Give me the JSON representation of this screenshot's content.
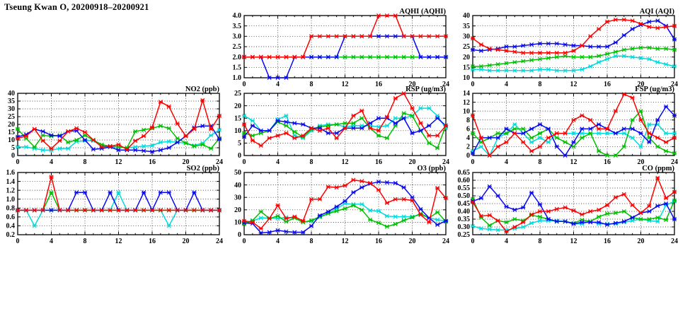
{
  "page_title": "Tseung Kwan O, 20200918–20200921",
  "x_axis": {
    "min": 0,
    "max": 24,
    "major_tick_step": 4,
    "minor_tick_step": 1,
    "tick_labels": [
      "0",
      "4",
      "8",
      "12",
      "16",
      "20",
      "24"
    ]
  },
  "series_colors": {
    "red": "#ff0000",
    "green": "#00c000",
    "blue": "#0808f0",
    "cyan": "#00dcdc"
  },
  "x_values": [
    0,
    1,
    2,
    3,
    4,
    5,
    6,
    7,
    8,
    9,
    10,
    11,
    12,
    13,
    14,
    15,
    16,
    17,
    18,
    19,
    20,
    21,
    22,
    23,
    24
  ],
  "chart_data": [
    {
      "id": "aqhi",
      "type": "line",
      "title": "AQHI (AQHI)",
      "ylim": [
        1.0,
        4.0
      ],
      "ytick_step": 0.5,
      "y_decimals": 1,
      "grid": true,
      "series": [
        {
          "name": "red",
          "values": [
            2,
            2,
            2,
            2,
            2,
            2,
            2,
            2,
            3,
            3,
            3,
            3,
            3,
            3,
            3,
            3,
            4,
            4,
            4,
            3,
            3,
            3,
            3,
            3,
            3
          ]
        },
        {
          "name": "green",
          "values": [
            2,
            2,
            2,
            2,
            2,
            2,
            2,
            2,
            2,
            2,
            2,
            2,
            2,
            2,
            2,
            2,
            2,
            2,
            2,
            2,
            2,
            2,
            2,
            2,
            2
          ]
        },
        {
          "name": "blue",
          "values": [
            2,
            2,
            2,
            1,
            1,
            1,
            2,
            2,
            2,
            2,
            2,
            2,
            3,
            3,
            3,
            3,
            3,
            3,
            3,
            3,
            3,
            2,
            2,
            2,
            2
          ]
        },
        {
          "name": "cyan",
          "values": [
            2,
            2,
            2,
            2,
            2,
            2,
            2,
            2,
            2,
            2,
            2,
            2,
            2,
            2,
            2,
            2,
            2,
            2,
            2,
            2,
            2,
            2,
            2,
            2,
            2
          ]
        }
      ]
    },
    {
      "id": "aqi",
      "type": "line",
      "title": "AQI (AQI)",
      "ylim": [
        10,
        40
      ],
      "ytick_step": 5,
      "y_decimals": 0,
      "grid": true,
      "series": [
        {
          "name": "red",
          "values": [
            29,
            26,
            24,
            23.5,
            23,
            22.5,
            22,
            22,
            22,
            22,
            22,
            22,
            23,
            25.5,
            30,
            33.5,
            37,
            38,
            38,
            37.5,
            36,
            34.5,
            34,
            34.5,
            35
          ]
        },
        {
          "name": "green",
          "values": [
            15.5,
            15.5,
            16,
            16.5,
            17,
            17.5,
            18,
            18.5,
            19,
            19.5,
            20,
            20.5,
            20,
            20,
            20,
            20.5,
            21.5,
            22.5,
            23.5,
            24,
            24.5,
            24.5,
            24,
            24,
            23.5
          ]
        },
        {
          "name": "blue",
          "values": [
            23.5,
            23,
            23.5,
            24,
            25,
            25,
            25.5,
            26,
            26.5,
            26.5,
            26.5,
            26,
            25.5,
            25.5,
            25,
            25,
            25,
            27,
            30.5,
            33.5,
            35.5,
            37,
            37.5,
            35,
            28.5
          ]
        },
        {
          "name": "cyan",
          "values": [
            14,
            14,
            13.5,
            13.5,
            13.5,
            13.5,
            13.5,
            13.5,
            14,
            14,
            13.5,
            13.5,
            13.5,
            14,
            15.5,
            17.5,
            19,
            20.5,
            20.5,
            20,
            19.5,
            19,
            17.5,
            16.5,
            15.5
          ]
        }
      ]
    },
    {
      "id": "no2",
      "type": "line",
      "title": "NO2 (ppb)",
      "ylim": [
        0,
        40
      ],
      "ytick_step": 5,
      "y_decimals": 0,
      "grid": true,
      "series": [
        {
          "name": "red",
          "values": [
            11,
            12.5,
            17,
            9.5,
            4.5,
            9.5,
            15.5,
            17.5,
            15,
            10,
            5.5,
            6,
            7,
            4,
            9.5,
            12.5,
            18,
            34.5,
            31.5,
            20.5,
            12.5,
            17,
            35.5,
            17,
            25.5
          ]
        },
        {
          "name": "green",
          "values": [
            17,
            11,
            5.5,
            13,
            12.5,
            13,
            8.5,
            10,
            13,
            10,
            7,
            6,
            5.5,
            5,
            15.5,
            16.5,
            17.5,
            19,
            17.5,
            11,
            8,
            6,
            7,
            4.5,
            11
          ]
        },
        {
          "name": "blue",
          "values": [
            12,
            13.5,
            17,
            15.5,
            13,
            12.5,
            15.5,
            16,
            10,
            4,
            4.5,
            5.5,
            3.5,
            3.5,
            3.5,
            3,
            2.5,
            3.5,
            5,
            8.5,
            12.5,
            18,
            19,
            19,
            10.5
          ]
        },
        {
          "name": "cyan",
          "values": [
            5.5,
            5.5,
            4.5,
            3.5,
            3.5,
            4.5,
            4.5,
            9,
            9.5,
            9.5,
            6.5,
            5.5,
            5.5,
            5,
            5.5,
            6,
            6.5,
            8.5,
            9,
            8.5,
            8,
            6.5,
            8,
            13,
            16.5
          ]
        }
      ]
    },
    {
      "id": "rsp",
      "type": "line",
      "title": "RSP (ug/m3)",
      "ylim": [
        0,
        25
      ],
      "ytick_step": 5,
      "y_decimals": 0,
      "grid": true,
      "series": [
        {
          "name": "red",
          "values": [
            12.5,
            6,
            4,
            7,
            8,
            9,
            7,
            8,
            11,
            10,
            11,
            7,
            11,
            16,
            18,
            11,
            10,
            15.5,
            23,
            25,
            19,
            13,
            8,
            8,
            12
          ]
        },
        {
          "name": "green",
          "values": [
            9,
            8,
            9,
            10,
            13.5,
            12,
            9.5,
            7.5,
            10.5,
            11.5,
            12,
            12.5,
            13,
            13,
            15,
            11,
            8,
            7,
            12,
            17,
            16,
            10,
            5,
            3,
            12
          ]
        },
        {
          "name": "blue",
          "values": [
            7.5,
            12,
            10,
            10,
            14,
            13.5,
            13,
            12.5,
            11,
            11,
            9,
            9,
            11,
            11,
            11,
            13,
            15,
            15,
            13,
            15,
            9,
            10,
            12,
            15,
            12
          ]
        },
        {
          "name": "cyan",
          "values": [
            16,
            14,
            10,
            10,
            14.5,
            16,
            8,
            7,
            10,
            12,
            12.5,
            12.5,
            11.5,
            12,
            12,
            12,
            11.5,
            12,
            15,
            15,
            16,
            19,
            19,
            16,
            11
          ]
        }
      ]
    },
    {
      "id": "fsp",
      "type": "line",
      "title": "FSP (ug/m3)",
      "ylim": [
        0,
        14
      ],
      "ytick_step": 2,
      "y_decimals": 0,
      "grid": true,
      "series": [
        {
          "name": "red",
          "values": [
            9,
            4,
            0,
            2,
            3,
            5,
            3,
            1,
            2,
            4,
            5,
            5,
            8,
            9,
            8,
            6,
            6,
            10,
            13.8,
            13,
            8,
            5,
            4,
            3,
            4
          ]
        },
        {
          "name": "green",
          "values": [
            5,
            3,
            4,
            5,
            5,
            6,
            6,
            4,
            5,
            6,
            4,
            3,
            2,
            4,
            5,
            1,
            0,
            0,
            2,
            8,
            10,
            4,
            2,
            1,
            0.5
          ]
        },
        {
          "name": "blue",
          "values": [
            0.5,
            4,
            4,
            4,
            6,
            5,
            5,
            6,
            7,
            6,
            2,
            0,
            3,
            6,
            6,
            7,
            6,
            5,
            6,
            6,
            5,
            3,
            8,
            11,
            9
          ]
        },
        {
          "name": "cyan",
          "values": [
            1,
            2,
            0,
            4,
            5,
            7,
            5,
            3,
            4,
            3,
            5,
            5,
            5,
            5,
            5,
            5,
            5,
            5,
            5,
            4,
            2,
            7,
            7,
            5,
            5
          ]
        }
      ]
    },
    {
      "id": "so2",
      "type": "line",
      "title": "SO2 (ppb)",
      "ylim": [
        0.2,
        1.6
      ],
      "ytick_step": 0.2,
      "y_decimals": 1,
      "grid": true,
      "series": [
        {
          "name": "red",
          "values": [
            0.75,
            0.75,
            0.75,
            0.75,
            1.5,
            0.75,
            0.75,
            0.75,
            0.75,
            0.75,
            0.75,
            0.75,
            0.75,
            0.75,
            0.75,
            0.75,
            0.75,
            0.75,
            0.75,
            0.75,
            0.75,
            0.75,
            0.75,
            0.75,
            0.75
          ]
        },
        {
          "name": "green",
          "values": [
            0.75,
            0.75,
            0.75,
            0.75,
            1.15,
            0.75,
            0.75,
            0.75,
            0.75,
            0.75,
            0.75,
            0.75,
            0.75,
            0.75,
            0.75,
            0.75,
            0.75,
            0.75,
            0.75,
            0.75,
            0.75,
            0.75,
            0.75,
            0.75,
            0.75
          ]
        },
        {
          "name": "blue",
          "values": [
            0.75,
            0.75,
            0.75,
            0.75,
            0.75,
            0.75,
            0.75,
            1.15,
            1.15,
            0.75,
            0.75,
            1.15,
            0.75,
            0.75,
            0.75,
            1.15,
            0.75,
            1.15,
            1.15,
            0.75,
            0.75,
            1.15,
            0.75,
            0.75,
            0.75
          ]
        },
        {
          "name": "cyan",
          "values": [
            0.75,
            0.75,
            0.4,
            0.75,
            0.75,
            0.75,
            0.75,
            0.75,
            0.75,
            0.75,
            0.75,
            0.75,
            1.15,
            0.75,
            0.75,
            0.75,
            0.75,
            0.75,
            0.4,
            0.75,
            0.75,
            0.75,
            0.75,
            0.75,
            0.75
          ]
        }
      ]
    },
    {
      "id": "o3",
      "type": "line",
      "title": "O3 (ppb)",
      "ylim": [
        0,
        50
      ],
      "ytick_step": 10,
      "y_decimals": 0,
      "grid": true,
      "series": [
        {
          "name": "red",
          "values": [
            11,
            10,
            5,
            13,
            23.5,
            13,
            14.5,
            11,
            28.5,
            28.5,
            38.5,
            38,
            39.5,
            44,
            43,
            41.5,
            36,
            25.5,
            28.5,
            28.5,
            27.5,
            16,
            10,
            37.5,
            29.5
          ]
        },
        {
          "name": "green",
          "values": [
            8.5,
            11.5,
            18.5,
            13,
            15,
            10.5,
            13.5,
            10,
            11.5,
            14.5,
            17,
            19,
            21,
            23.5,
            20,
            12,
            9.5,
            6.5,
            8.5,
            11.5,
            14,
            17,
            13.5,
            18,
            10.5
          ]
        },
        {
          "name": "blue",
          "values": [
            9.5,
            9,
            1.5,
            2,
            3.5,
            2.5,
            2,
            2,
            7,
            15.5,
            18.5,
            22.5,
            27,
            34,
            38,
            41,
            42.5,
            42,
            41.5,
            38,
            30,
            20.5,
            13.5,
            8,
            11
          ]
        },
        {
          "name": "cyan",
          "values": [
            10,
            11,
            13.5,
            13.5,
            13,
            14,
            13.5,
            10,
            11,
            14,
            17,
            21,
            25,
            24.5,
            24.5,
            19.5,
            19,
            15,
            14.5,
            14.5,
            14.5,
            16,
            13.5,
            12,
            11
          ]
        }
      ]
    },
    {
      "id": "co",
      "type": "line",
      "title": "CO (ppm)",
      "ylim": [
        0.25,
        0.65
      ],
      "ytick_step": 0.05,
      "y_decimals": 2,
      "grid": true,
      "series": [
        {
          "name": "red",
          "values": [
            0.46,
            0.37,
            0.375,
            0.34,
            0.27,
            0.3,
            0.33,
            0.38,
            0.4,
            0.4,
            0.415,
            0.425,
            0.405,
            0.38,
            0.4,
            0.41,
            0.44,
            0.49,
            0.51,
            0.44,
            0.39,
            0.435,
            0.615,
            0.485,
            0.525
          ]
        },
        {
          "name": "green",
          "values": [
            0.48,
            0.36,
            0.31,
            0.34,
            0.33,
            0.35,
            0.34,
            0.375,
            0.365,
            0.35,
            0.335,
            0.335,
            0.325,
            0.345,
            0.335,
            0.365,
            0.385,
            0.39,
            0.4,
            0.36,
            0.35,
            0.35,
            0.36,
            0.345,
            0.47
          ]
        },
        {
          "name": "blue",
          "values": [
            0.465,
            0.485,
            0.56,
            0.5,
            0.43,
            0.41,
            0.425,
            0.52,
            0.445,
            0.35,
            0.335,
            0.335,
            0.32,
            0.33,
            0.33,
            0.33,
            0.315,
            0.325,
            0.335,
            0.36,
            0.39,
            0.4,
            0.435,
            0.45,
            0.35
          ]
        },
        {
          "name": "cyan",
          "values": [
            0.305,
            0.29,
            0.285,
            0.28,
            0.28,
            0.29,
            0.3,
            0.325,
            0.34,
            0.34,
            0.34,
            0.335,
            0.32,
            0.32,
            0.335,
            0.32,
            0.32,
            0.32,
            0.33,
            0.34,
            0.35,
            0.34,
            0.335,
            0.44,
            0.465
          ]
        }
      ]
    }
  ]
}
